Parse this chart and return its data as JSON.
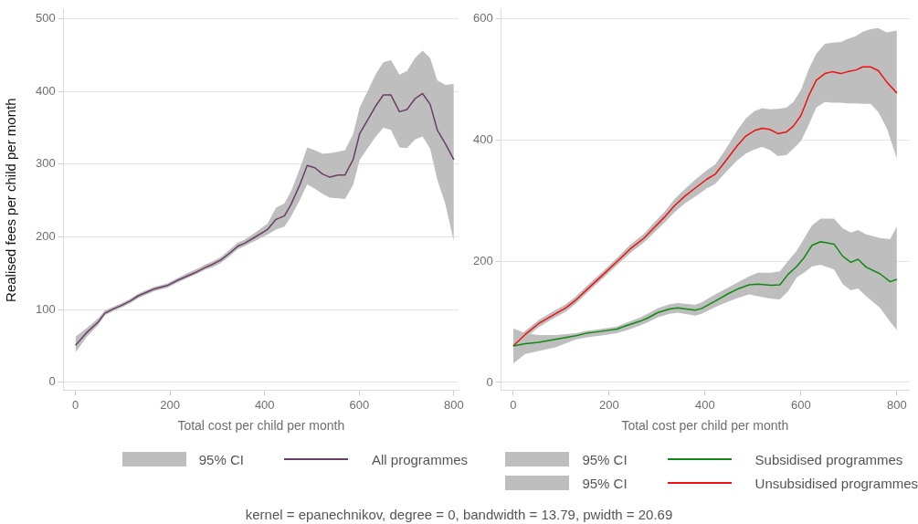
{
  "chart_data": [
    {
      "type": "line",
      "xlabel": "Total cost per child per month",
      "ylabel": "Realised fees per child per month",
      "xlim": [
        -25,
        810
      ],
      "ylim": [
        -11,
        512
      ],
      "xticks": [
        0,
        200,
        400,
        600,
        800
      ],
      "yticks": [
        0,
        100,
        200,
        300,
        400,
        500
      ],
      "grid": "y",
      "legend": "bottom",
      "annotations": [
        "95% CI"
      ],
      "series": [
        {
          "name": "All programmes",
          "color": "#6b3e66",
          "x": [
            0,
            23,
            48,
            62,
            80,
            98,
            116,
            133,
            151,
            165,
            194,
            215,
            236,
            257,
            275,
            289,
            307,
            325,
            343,
            357,
            378,
            406,
            424,
            442,
            456,
            474,
            490,
            506,
            523,
            538,
            555,
            570,
            587,
            601,
            619,
            635,
            651,
            667,
            685,
            701,
            718,
            734,
            750,
            765,
            782,
            800
          ],
          "values": [
            51,
            68,
            83,
            95,
            101,
            106,
            112,
            119,
            124,
            128,
            133,
            140,
            146,
            152,
            158,
            162,
            168,
            177,
            187,
            191,
            199,
            210,
            224,
            229,
            245,
            271,
            298,
            295,
            286,
            282,
            285,
            285,
            306,
            342,
            362,
            380,
            395,
            395,
            372,
            375,
            390,
            397,
            382,
            347,
            328,
            306
          ],
          "lower": [
            41,
            62,
            79,
            92,
            98,
            103,
            109,
            116,
            121,
            125,
            130,
            137,
            143,
            149,
            155,
            158,
            164,
            173,
            183,
            187,
            194,
            203,
            210,
            214,
            228,
            250,
            272,
            266,
            259,
            254,
            253,
            252,
            271,
            306,
            323,
            338,
            350,
            347,
            323,
            322,
            334,
            338,
            321,
            279,
            245,
            194
          ],
          "upper": [
            63,
            74,
            88,
            99,
            104,
            109,
            115,
            122,
            127,
            131,
            136,
            143,
            150,
            156,
            162,
            166,
            172,
            182,
            192,
            196,
            205,
            218,
            240,
            246,
            263,
            293,
            323,
            319,
            314,
            315,
            317,
            319,
            341,
            378,
            402,
            424,
            440,
            443,
            423,
            428,
            446,
            456,
            446,
            415,
            409,
            410
          ]
        }
      ]
    },
    {
      "type": "line",
      "xlabel": "Total cost per child per month",
      "xlim": [
        -25,
        825
      ],
      "ylim": [
        -13,
        614
      ],
      "xticks": [
        0,
        200,
        400,
        600,
        800
      ],
      "yticks": [
        0,
        200,
        400,
        600
      ],
      "grid": "y",
      "legend": "bottom",
      "annotations": [
        "95% CI",
        "95% CI",
        "kernel = epanechnikov, degree = 0, bandwidth = 13.79, pwidth = 20.69"
      ],
      "series": [
        {
          "name": "Subsidised programmes",
          "color": "#118811",
          "x": [
            0,
            25,
            53,
            88,
            131,
            152,
            181,
            216,
            237,
            265,
            280,
            301,
            326,
            343,
            379,
            393,
            421,
            450,
            471,
            492,
            510,
            538,
            556,
            573,
            591,
            605,
            623,
            641,
            669,
            687,
            704,
            719,
            736,
            765,
            786,
            800
          ],
          "values": [
            60,
            64,
            66,
            71,
            77,
            81,
            84,
            88,
            94,
            101,
            106,
            115,
            121,
            123,
            119,
            122,
            134,
            147,
            155,
            161,
            162,
            160,
            161,
            178,
            191,
            204,
            226,
            232,
            228,
            208,
            198,
            203,
            190,
            179,
            166,
            170
          ],
          "lower": [
            31,
            47,
            52,
            58,
            71,
            74,
            77,
            81,
            86,
            94,
            99,
            107,
            113,
            115,
            110,
            113,
            124,
            134,
            140,
            145,
            142,
            138,
            137,
            150,
            173,
            180,
            191,
            194,
            186,
            162,
            152,
            155,
            142,
            123,
            100,
            86
          ],
          "upper": [
            89,
            81,
            78,
            78,
            81,
            85,
            88,
            92,
            99,
            107,
            113,
            122,
            129,
            131,
            128,
            132,
            145,
            157,
            166,
            175,
            181,
            181,
            183,
            200,
            217,
            235,
            259,
            270,
            270,
            254,
            247,
            251,
            244,
            238,
            236,
            257
          ]
        },
        {
          "name": "Unsubsidised programmes",
          "color": "#ee1111",
          "x": [
            0,
            25,
            53,
            81,
            110,
            131,
            159,
            188,
            216,
            244,
            273,
            290,
            315,
            336,
            358,
            379,
            404,
            421,
            442,
            467,
            485,
            503,
            519,
            535,
            552,
            570,
            584,
            600,
            616,
            632,
            650,
            665,
            683,
            697,
            715,
            729,
            745,
            761,
            779,
            800
          ],
          "values": [
            60,
            79,
            97,
            110,
            123,
            136,
            157,
            178,
            199,
            220,
            238,
            252,
            272,
            291,
            307,
            320,
            335,
            343,
            364,
            390,
            406,
            415,
            419,
            417,
            410,
            413,
            422,
            440,
            472,
            498,
            509,
            512,
            509,
            512,
            515,
            520,
            520,
            514,
            495,
            477
          ],
          "lower": [
            53,
            73,
            91,
            104,
            117,
            130,
            151,
            172,
            193,
            213,
            231,
            244,
            263,
            280,
            295,
            306,
            320,
            327,
            345,
            366,
            377,
            384,
            388,
            383,
            373,
            375,
            385,
            398,
            424,
            453,
            462,
            461,
            461,
            460,
            460,
            459,
            459,
            446,
            419,
            369
          ],
          "upper": [
            67,
            85,
            103,
            116,
            129,
            142,
            163,
            184,
            205,
            227,
            245,
            260,
            281,
            302,
            319,
            334,
            350,
            359,
            383,
            415,
            435,
            447,
            452,
            450,
            451,
            453,
            462,
            482,
            516,
            542,
            558,
            560,
            561,
            566,
            571,
            578,
            582,
            584,
            577,
            580
          ]
        }
      ]
    }
  ]
}
